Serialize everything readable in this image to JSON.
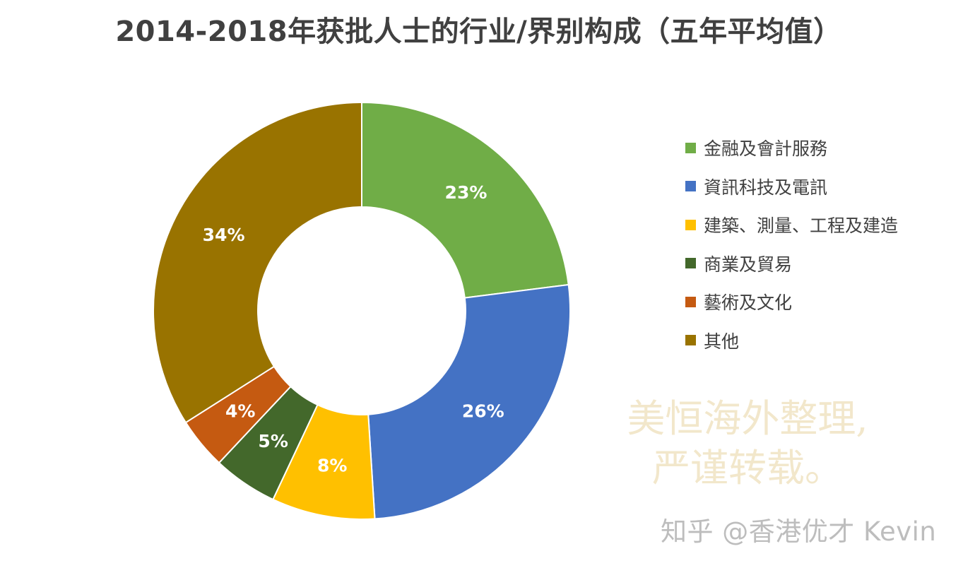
{
  "title": "2014-2018年获批人士的行业/界别构成（五年平均值）",
  "chart_data": {
    "type": "pie",
    "variant": "donut",
    "title": "2014-2018年获批人士的行业/界别构成（五年平均值）",
    "legend_position": "right",
    "slices": [
      {
        "label": "金融及會計服務",
        "value": 23,
        "display": "23%",
        "color": "#70ad47"
      },
      {
        "label": "資訊科技及電訊",
        "value": 26,
        "display": "26%",
        "color": "#4472c4"
      },
      {
        "label": "建築、測量、工程及建造",
        "value": 8,
        "display": "8%",
        "color": "#ffc000"
      },
      {
        "label": "商業及貿易",
        "value": 5,
        "display": "5%",
        "color": "#43682b"
      },
      {
        "label": "藝術及文化",
        "value": 4,
        "display": "4%",
        "color": "#c55a11"
      },
      {
        "label": "其他",
        "value": 34,
        "display": "34%",
        "color": "#997300"
      }
    ]
  },
  "watermark": {
    "line1": "美恒海外整理,",
    "line2": "严谨转载。"
  },
  "credit": "知乎 @香港优才 Kevin"
}
